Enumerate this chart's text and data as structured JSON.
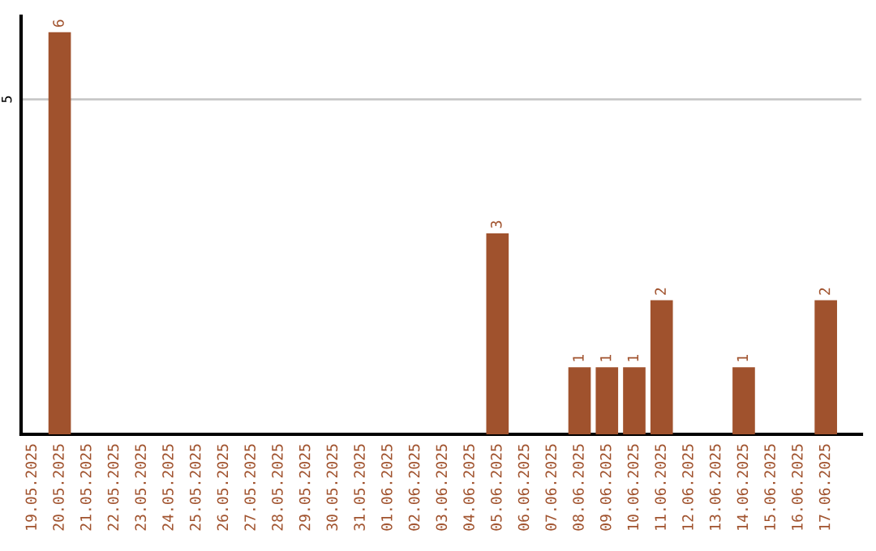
{
  "chart_data": {
    "type": "bar",
    "categories": [
      "19.05.2025",
      "20.05.2025",
      "21.05.2025",
      "22.05.2025",
      "23.05.2025",
      "24.05.2025",
      "25.05.2025",
      "26.05.2025",
      "27.05.2025",
      "28.05.2025",
      "29.05.2025",
      "30.05.2025",
      "31.05.2025",
      "01.06.2025",
      "02.06.2025",
      "03.06.2025",
      "04.06.2025",
      "05.06.2025",
      "06.06.2025",
      "07.06.2025",
      "08.06.2025",
      "09.06.2025",
      "10.06.2025",
      "11.06.2025",
      "12.06.2025",
      "13.06.2025",
      "14.06.2025",
      "15.06.2025",
      "16.06.2025",
      "17.06.2025"
    ],
    "values": [
      0,
      6,
      0,
      0,
      0,
      0,
      0,
      0,
      0,
      0,
      0,
      0,
      0,
      0,
      0,
      0,
      0,
      3,
      0,
      0,
      1,
      1,
      1,
      2,
      0,
      0,
      1,
      0,
      0,
      2
    ],
    "value_labels": [
      null,
      "6",
      null,
      null,
      null,
      null,
      null,
      null,
      null,
      null,
      null,
      null,
      null,
      null,
      null,
      null,
      null,
      "3",
      null,
      null,
      "1",
      "1",
      "1",
      "2",
      null,
      null,
      "1",
      null,
      null,
      "2"
    ],
    "color": "#a0522d",
    "ylim": [
      0,
      6.24
    ],
    "yticks": [
      5
    ],
    "grid": "y"
  }
}
